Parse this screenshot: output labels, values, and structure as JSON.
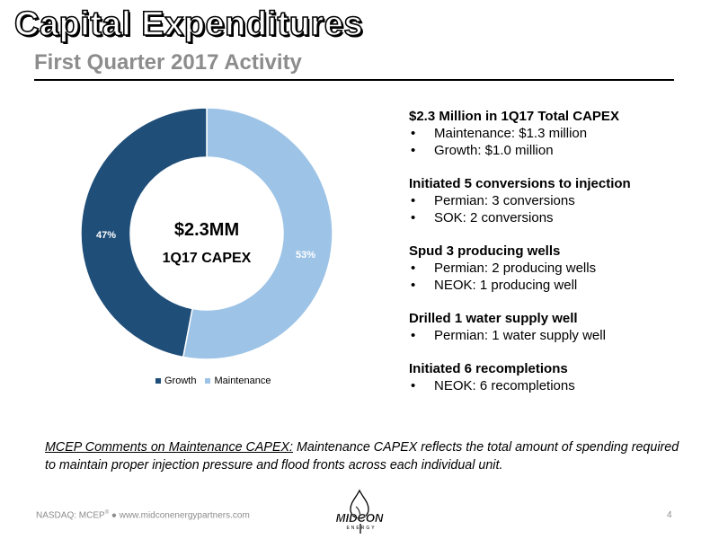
{
  "header": {
    "title": "Capital Expenditures",
    "subtitle": "First Quarter 2017 Activity"
  },
  "chart_data": {
    "type": "pie",
    "variant": "donut",
    "center_value": "$2.3MM",
    "center_label": "1Q17 CAPEX",
    "legend_position": "bottom",
    "slices": [
      {
        "name": "Growth",
        "value": 47,
        "label": "47%",
        "color": "#1f4e79"
      },
      {
        "name": "Maintenance",
        "value": 53,
        "label": "53%",
        "color": "#9dc3e6"
      }
    ]
  },
  "highlights": [
    {
      "heading": "$2.3 Million in 1Q17 Total CAPEX",
      "bullets": [
        "Maintenance: $1.3 million",
        "Growth: $1.0 million"
      ]
    },
    {
      "heading": "Initiated 5 conversions to injection",
      "bullets": [
        "Permian: 3 conversions",
        "SOK: 2 conversions"
      ]
    },
    {
      "heading": "Spud 3 producing wells",
      "bullets": [
        "Permian: 2 producing wells",
        "NEOK: 1 producing well"
      ]
    },
    {
      "heading": "Drilled 1 water supply well",
      "bullets": [
        "Permian: 1 water supply well"
      ]
    },
    {
      "heading": "Initiated 6 recompletions",
      "bullets": [
        "NEOK: 6 recompletions"
      ]
    }
  ],
  "bullet_char": "•",
  "comments": {
    "label": "MCEP Comments on Maintenance CAPEX:",
    "text": " Maintenance CAPEX reflects the total amount of spending required to maintain proper injection pressure and flood fronts across each individual unit."
  },
  "footer": {
    "ticker": "NASDAQ: MCEP",
    "ticker_mark": "®",
    "separator": "●",
    "website": "www.midconenergypartners.com",
    "page_number": "4",
    "logo_text": "MIDCON",
    "logo_subtext": "ENERGY"
  }
}
